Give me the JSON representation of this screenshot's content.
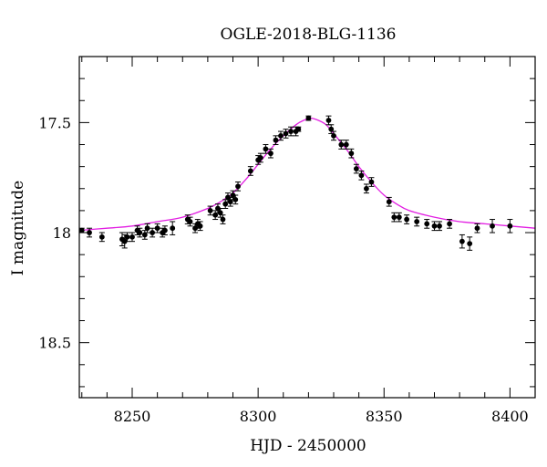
{
  "chart_data": {
    "type": "scatter",
    "title": "OGLE-2018-BLG-1136",
    "xlabel": "HJD - 2450000",
    "ylabel": "I magnitude",
    "xlim": [
      8229,
      8410
    ],
    "ylim": [
      18.75,
      17.2
    ],
    "y_inverted": true,
    "xticks": [
      "8250",
      "8300",
      "8350",
      "8400"
    ],
    "yticks": [
      "17.5",
      "18",
      "18.5"
    ],
    "grid": false,
    "legend": "none",
    "colors": {
      "points": "#000000",
      "model": "#e21ee2"
    },
    "series": [
      {
        "type": "scatter",
        "x": [
          8230,
          8233,
          8238,
          8246,
          8247,
          8248,
          8250,
          8252,
          8253,
          8255,
          8256,
          8258,
          8260,
          8262,
          8263,
          8266,
          8272,
          8273,
          8275,
          8276,
          8277,
          8281,
          8283,
          8284,
          8285,
          8286,
          8287,
          8288,
          8289,
          8290,
          8291,
          8292,
          8297,
          8300,
          8301,
          8303,
          8305,
          8307,
          8309,
          8311,
          8313,
          8315,
          8316,
          8320,
          8328,
          8329,
          8330,
          8333,
          8335,
          8337,
          8339,
          8341,
          8343,
          8345,
          8352,
          8354,
          8356,
          8359,
          8363,
          8367,
          8370,
          8372,
          8376,
          8381,
          8384,
          8387,
          8393,
          8400
        ],
        "y": [
          17.99,
          18.0,
          18.02,
          18.03,
          18.04,
          18.02,
          18.02,
          17.99,
          18.0,
          18.01,
          17.98,
          18.0,
          17.98,
          18.0,
          17.99,
          17.98,
          17.94,
          17.95,
          17.98,
          17.96,
          17.97,
          17.9,
          17.92,
          17.89,
          17.91,
          17.94,
          17.87,
          17.84,
          17.86,
          17.83,
          17.85,
          17.79,
          17.72,
          17.67,
          17.66,
          17.62,
          17.64,
          17.58,
          17.56,
          17.55,
          17.54,
          17.54,
          17.53,
          17.48,
          17.49,
          17.53,
          17.56,
          17.6,
          17.6,
          17.64,
          17.71,
          17.74,
          17.8,
          17.77,
          17.86,
          17.93,
          17.93,
          17.94,
          17.95,
          17.96,
          17.97,
          17.97,
          17.96,
          18.04,
          18.05,
          17.98,
          17.97,
          17.97
        ],
        "yerr": [
          0.01,
          0.02,
          0.02,
          0.03,
          0.03,
          0.02,
          0.02,
          0.02,
          0.02,
          0.02,
          0.02,
          0.02,
          0.02,
          0.02,
          0.02,
          0.03,
          0.02,
          0.02,
          0.02,
          0.02,
          0.02,
          0.02,
          0.02,
          0.02,
          0.02,
          0.02,
          0.02,
          0.02,
          0.02,
          0.02,
          0.02,
          0.02,
          0.02,
          0.02,
          0.02,
          0.02,
          0.02,
          0.02,
          0.02,
          0.02,
          0.02,
          0.02,
          0.01,
          0.01,
          0.02,
          0.02,
          0.02,
          0.02,
          0.02,
          0.02,
          0.02,
          0.02,
          0.02,
          0.02,
          0.02,
          0.02,
          0.02,
          0.02,
          0.02,
          0.02,
          0.02,
          0.02,
          0.02,
          0.03,
          0.03,
          0.02,
          0.03,
          0.03
        ]
      },
      {
        "type": "line",
        "x": [
          8229,
          8240,
          8250,
          8260,
          8270,
          8280,
          8285,
          8290,
          8295,
          8300,
          8305,
          8310,
          8315,
          8318,
          8321,
          8324,
          8327,
          8330,
          8335,
          8340,
          8345,
          8350,
          8355,
          8360,
          8370,
          8380,
          8390,
          8400,
          8410
        ],
        "y": [
          17.99,
          17.98,
          17.97,
          17.95,
          17.93,
          17.89,
          17.86,
          17.82,
          17.76,
          17.69,
          17.62,
          17.56,
          17.51,
          17.49,
          17.48,
          17.49,
          17.51,
          17.55,
          17.62,
          17.7,
          17.77,
          17.83,
          17.87,
          17.9,
          17.93,
          17.95,
          17.96,
          17.97,
          17.98
        ]
      }
    ]
  }
}
